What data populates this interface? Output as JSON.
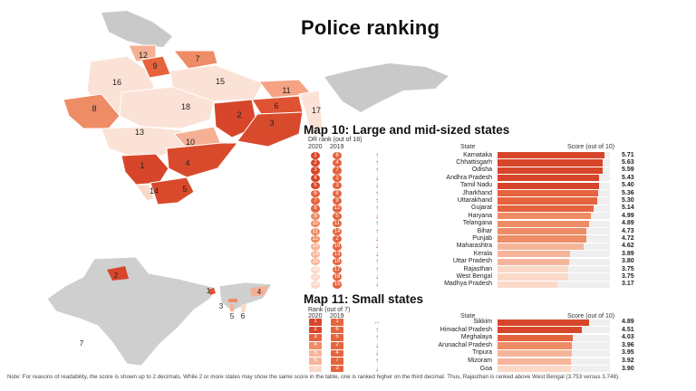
{
  "title": "Police ranking",
  "colors": {
    "top": "#d7462a",
    "high": "#e5643e",
    "mid": "#ee8c66",
    "low": "#f6b59b",
    "pale": "#fbd9c8",
    "grey": "#c8c8c8",
    "up": "#2e9e57",
    "down": "#c73a2d"
  },
  "map10": {
    "title": "Map 10: Large and mid-sized states",
    "rank_label": "DR rank (out of 18)",
    "col_2020": "2020",
    "col_2019": "2019",
    "col_state": "State",
    "col_score": "Score (out of 10)",
    "rows": [
      {
        "r2020": "1",
        "r2019": "6",
        "trend": "up",
        "state": "Karnataka",
        "score": "5.71",
        "value": 5.71
      },
      {
        "r2020": "2",
        "r2019": "4",
        "trend": "up",
        "state": "Chhattisgarh",
        "score": "5.63",
        "value": 5.63
      },
      {
        "r2020": "3",
        "r2019": "7",
        "trend": "up",
        "state": "Odisha",
        "score": "5.59",
        "value": 5.59
      },
      {
        "r2020": "4",
        "r2019": "1",
        "trend": "down",
        "state": "Andhra Pradesh",
        "score": "5.43",
        "value": 5.43
      },
      {
        "r2020": "5",
        "r2019": "3",
        "trend": "down",
        "state": "Tamil Nadu",
        "score": "5.40",
        "value": 5.4
      },
      {
        "r2020": "6",
        "r2019": "8",
        "trend": "up",
        "state": "Jharkhand",
        "score": "5.36",
        "value": 5.36
      },
      {
        "r2020": "7",
        "r2019": "9",
        "trend": "up",
        "state": "Uttarakhand",
        "score": "5.30",
        "value": 5.3
      },
      {
        "r2020": "8",
        "r2019": "12",
        "trend": "up",
        "state": "Gujarat",
        "score": "5.14",
        "value": 5.14
      },
      {
        "r2020": "9",
        "r2019": "5",
        "trend": "down",
        "state": "Haryana",
        "score": "4.99",
        "value": 4.99
      },
      {
        "r2020": "10",
        "r2019": "11",
        "trend": "up",
        "state": "Telangana",
        "score": "4.89",
        "value": 4.89
      },
      {
        "r2020": "11",
        "r2019": "14",
        "trend": "up",
        "state": "Bihar",
        "score": "4.73",
        "value": 4.73
      },
      {
        "r2020": "12",
        "r2019": "2",
        "trend": "down",
        "state": "Punjab",
        "score": "4.72",
        "value": 4.72
      },
      {
        "r2020": "13",
        "r2019": "10",
        "trend": "down",
        "state": "Maharashtra",
        "score": "4.62",
        "value": 4.62
      },
      {
        "r2020": "14",
        "r2019": "13",
        "trend": "down",
        "state": "Kerala",
        "score": "3.89",
        "value": 3.89
      },
      {
        "r2020": "15",
        "r2019": "18",
        "trend": "up",
        "state": "Uttar Pradesh",
        "score": "3.80",
        "value": 3.8
      },
      {
        "r2020": "16",
        "r2019": "17",
        "trend": "up",
        "state": "Rajasthan",
        "score": "3.75",
        "value": 3.75
      },
      {
        "r2020": "17",
        "r2019": "16",
        "trend": "down",
        "state": "West Bengal",
        "score": "3.75",
        "value": 3.75
      },
      {
        "r2020": "18",
        "r2019": "15",
        "trend": "down",
        "state": "Madhya Pradesh",
        "score": "3.17",
        "value": 3.17
      }
    ]
  },
  "map11": {
    "title": "Map 11: Small states",
    "rank_label": "Rank (out of 7)",
    "col_2020": "2020",
    "col_2019": "2019",
    "col_state": "State",
    "col_score": "Score (out of 10)",
    "rows": [
      {
        "r2020": "1",
        "r2019": "1",
        "trend": "eq",
        "state": "Sikkim",
        "score": "4.89",
        "value": 4.89
      },
      {
        "r2020": "2",
        "r2019": "6",
        "trend": "up",
        "state": "Himachal Pradesh",
        "score": "4.51",
        "value": 4.51
      },
      {
        "r2020": "3",
        "r2019": "5",
        "trend": "up",
        "state": "Meghalaya",
        "score": "4.03",
        "value": 4.03
      },
      {
        "r2020": "4",
        "r2019": "2",
        "trend": "down",
        "state": "Arunachal Pradesh",
        "score": "3.96",
        "value": 3.96
      },
      {
        "r2020": "5",
        "r2019": "4",
        "trend": "down",
        "state": "Tripura",
        "score": "3.95",
        "value": 3.95
      },
      {
        "r2020": "6",
        "r2019": "7",
        "trend": "up",
        "state": "Mizoram",
        "score": "3.92",
        "value": 3.92
      },
      {
        "r2020": "7",
        "r2019": "3",
        "trend": "down",
        "state": "Goa",
        "score": "3.90",
        "value": 3.9
      }
    ]
  },
  "large_map_labels": [
    "1",
    "2",
    "3",
    "4",
    "5",
    "6",
    "7",
    "8",
    "9",
    "10",
    "11",
    "12",
    "13",
    "14",
    "15",
    "16",
    "17",
    "18"
  ],
  "small_map_labels": [
    "1",
    "2",
    "3",
    "4",
    "5",
    "6",
    "7"
  ],
  "note": "Note: For reasons of readability, the score is shown up to 2 decimals. While 2 or more states may show the same score in the table, one is ranked higher on the third decimal. Thus, Rajasthan is ranked above West Bengal (3.753 versus 3.748)."
}
